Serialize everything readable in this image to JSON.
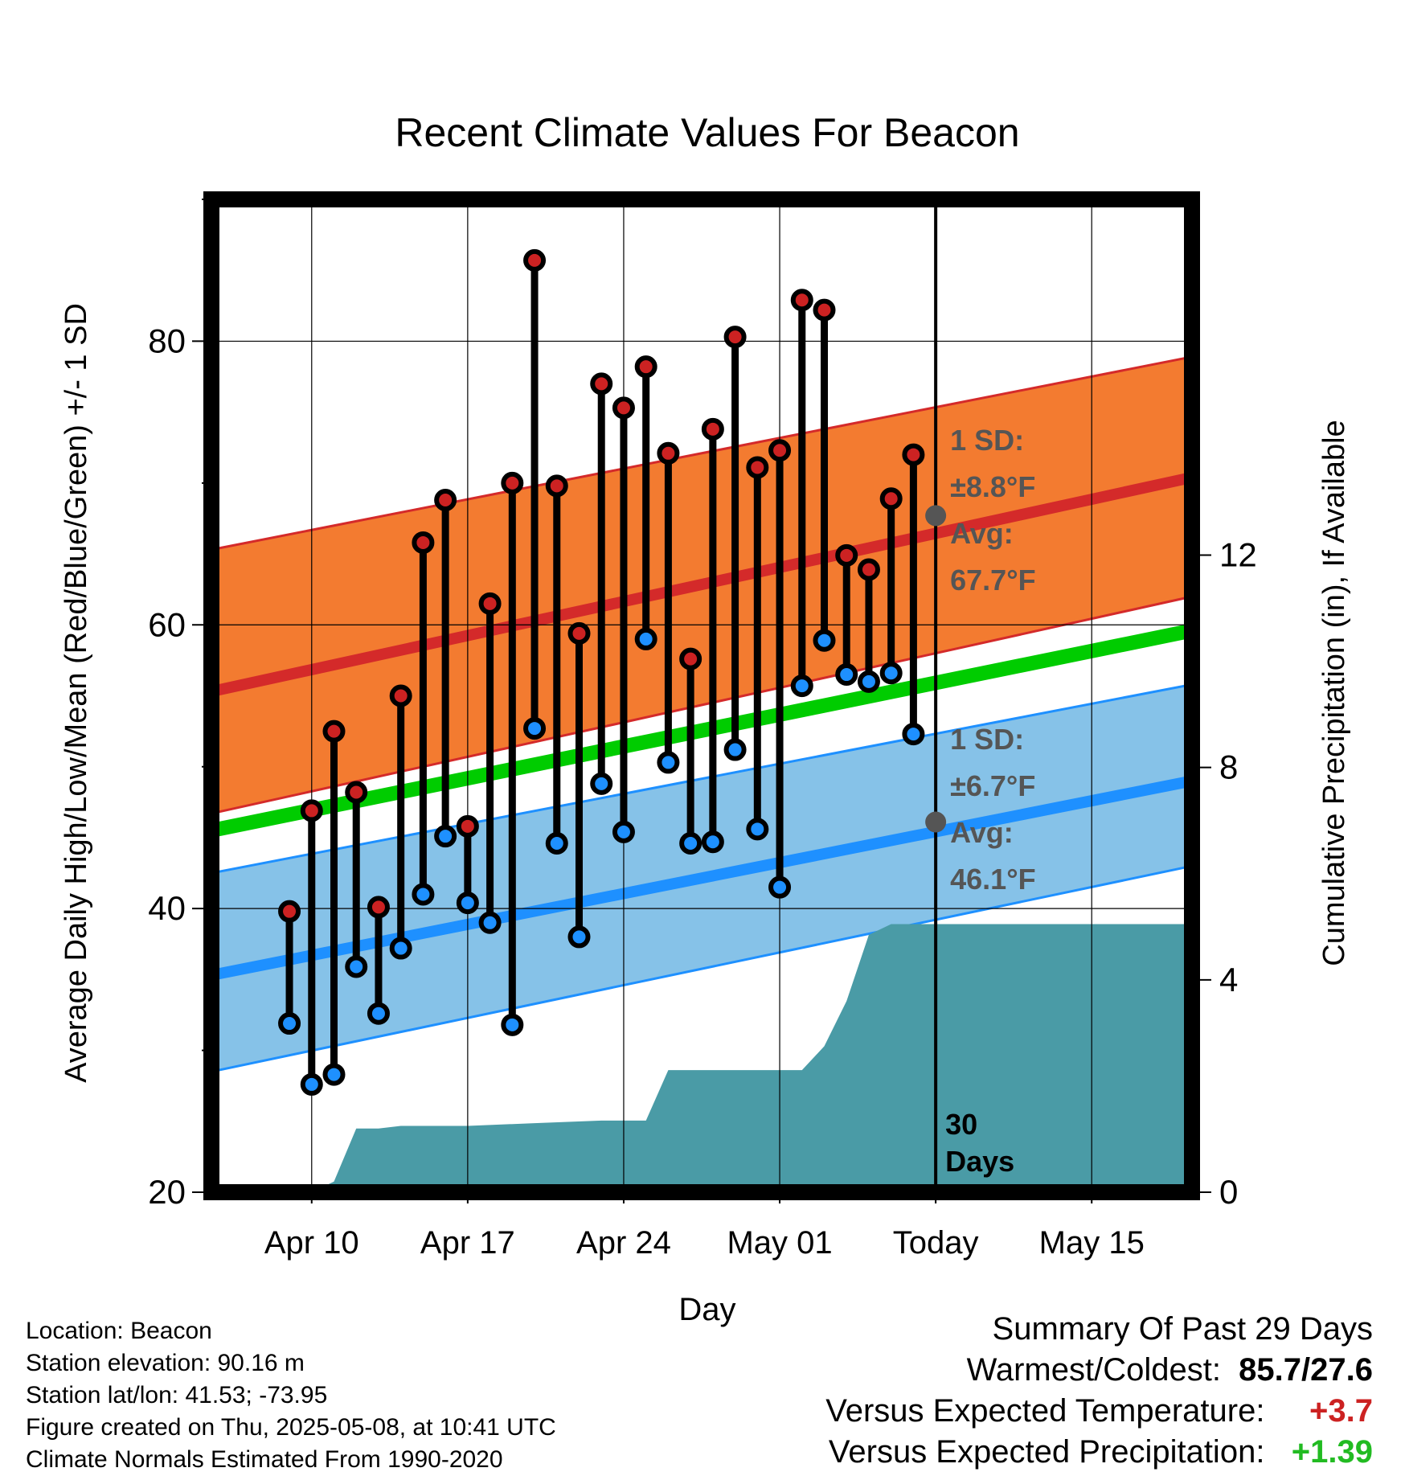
{
  "chart_data": {
    "type": "line",
    "title": "Recent Climate Values For Beacon",
    "xlabel": "Day",
    "ylabel": "Average Daily High/Low/Mean (Red/Blue/Green) +/- 1 SD",
    "y2label": "Cumulative Precipitation (in), If Available",
    "ylim": [
      20,
      90
    ],
    "y2lim": [
      0,
      18.7
    ],
    "x_day_range": [
      "Apr 06",
      "May 19"
    ],
    "xticks": [
      {
        "day": "Apr 10",
        "label": "Apr 10"
      },
      {
        "day": "Apr 17",
        "label": "Apr 17"
      },
      {
        "day": "Apr 24",
        "label": "Apr 24"
      },
      {
        "day": "May 01",
        "label": "May 01"
      },
      {
        "day": "May 08",
        "label": "Today"
      },
      {
        "day": "May 15",
        "label": "May 15"
      }
    ],
    "yticks": [
      20,
      40,
      60,
      80
    ],
    "y2ticks": [
      0,
      4,
      8,
      12
    ],
    "grid": true,
    "today": "May 08",
    "today_label": [
      "30",
      "Days"
    ],
    "normals": {
      "high_mean": {
        "start": 55.3,
        "end": 70.4,
        "color": "#d42a2a"
      },
      "high_sd_upper": {
        "start": 65.3,
        "end": 78.9
      },
      "high_sd_lower": {
        "start": 46.7,
        "end": 62.0
      },
      "high_band_color": "#f37b30",
      "low_mean": {
        "start": 35.3,
        "end": 49.0,
        "color": "#1e90ff"
      },
      "low_sd_upper": {
        "start": 42.5,
        "end": 55.8
      },
      "low_sd_lower": {
        "start": 28.5,
        "end": 43.0
      },
      "low_band_color": "#86c2e8",
      "avg_mean": {
        "start": 45.5,
        "end": 59.6,
        "color": "#00cc00"
      }
    },
    "annotations": {
      "high": {
        "sd_title": "1 SD:",
        "sd_value": "±8.8°F",
        "avg_title": "Avg:",
        "avg_value": "67.7°F",
        "avg_point": 67.7
      },
      "low": {
        "sd_title": "1 SD:",
        "sd_value": "±6.7°F",
        "avg_title": "Avg:",
        "avg_value": "46.1°F",
        "avg_point": 46.1
      }
    },
    "series": [
      {
        "name": "High",
        "color": "#cc2222",
        "x": [
          "Apr 09",
          "Apr 10",
          "Apr 11",
          "Apr 12",
          "Apr 13",
          "Apr 14",
          "Apr 15",
          "Apr 16",
          "Apr 17",
          "Apr 18",
          "Apr 19",
          "Apr 20",
          "Apr 21",
          "Apr 22",
          "Apr 23",
          "Apr 24",
          "Apr 25",
          "Apr 26",
          "Apr 27",
          "Apr 28",
          "Apr 29",
          "Apr 30",
          "May 01",
          "May 02",
          "May 03",
          "May 04",
          "May 05",
          "May 06",
          "May 07"
        ],
        "values": [
          39.8,
          46.9,
          52.5,
          48.2,
          40.1,
          55.0,
          65.8,
          68.8,
          45.8,
          61.5,
          70.0,
          85.7,
          69.8,
          59.4,
          77.0,
          75.3,
          78.2,
          72.1,
          57.6,
          73.8,
          80.3,
          71.1,
          72.3,
          82.9,
          82.2,
          64.9,
          63.9,
          68.9,
          72.0
        ]
      },
      {
        "name": "Low",
        "color": "#1e90ff",
        "x": [
          "Apr 09",
          "Apr 10",
          "Apr 11",
          "Apr 12",
          "Apr 13",
          "Apr 14",
          "Apr 15",
          "Apr 16",
          "Apr 17",
          "Apr 18",
          "Apr 19",
          "Apr 20",
          "Apr 21",
          "Apr 22",
          "Apr 23",
          "Apr 24",
          "Apr 25",
          "Apr 26",
          "Apr 27",
          "Apr 28",
          "Apr 29",
          "Apr 30",
          "May 01",
          "May 02",
          "May 03",
          "May 04",
          "May 05",
          "May 06",
          "May 07"
        ],
        "values": [
          31.9,
          27.6,
          28.3,
          35.9,
          32.6,
          37.2,
          41.0,
          45.1,
          40.4,
          39.0,
          31.8,
          52.7,
          44.6,
          38.0,
          48.8,
          45.4,
          59.0,
          50.3,
          44.6,
          44.7,
          51.2,
          45.6,
          41.5,
          55.7,
          58.9,
          56.5,
          56.0,
          56.6,
          52.3
        ]
      },
      {
        "name": "Cumulative Precipitation",
        "color": "#4a9ba6",
        "x": [
          "Apr 06",
          "Apr 09",
          "Apr 10",
          "Apr 11",
          "Apr 12",
          "Apr 13",
          "Apr 14",
          "Apr 17",
          "Apr 20",
          "Apr 23",
          "Apr 24",
          "Apr 25",
          "Apr 26",
          "Apr 27",
          "Apr 28",
          "Apr 29",
          "Apr 30",
          "May 01",
          "May 02",
          "May 03",
          "May 04",
          "May 05",
          "May 06",
          "May 19"
        ],
        "values": [
          0,
          0,
          0,
          0.2,
          1.2,
          1.2,
          1.25,
          1.25,
          1.3,
          1.35,
          1.35,
          1.35,
          2.3,
          2.3,
          2.3,
          2.3,
          2.3,
          2.3,
          2.3,
          2.75,
          3.6,
          4.85,
          5.05,
          5.05
        ]
      }
    ]
  },
  "footer": {
    "location": "Location: Beacon",
    "elevation": "Station elevation: 90.16 m",
    "latlon": "Station lat/lon: 41.53; -73.95",
    "created": "Figure created on Thu, 2025-05-08, at 10:41 UTC",
    "normals": "Climate Normals Estimated From 1990-2020"
  },
  "summary": {
    "title": "Summary Of Past 29 Days",
    "warm_cold_label": "Warmest/Coldest:",
    "warm_cold_value": "85.7/27.6",
    "temp_label": "Versus Expected Temperature:",
    "temp_value": "+3.7",
    "temp_color": "#cc2222",
    "precip_label": "Versus Expected Precipitation:",
    "precip_value": "+1.39",
    "precip_color": "#22bb22"
  }
}
